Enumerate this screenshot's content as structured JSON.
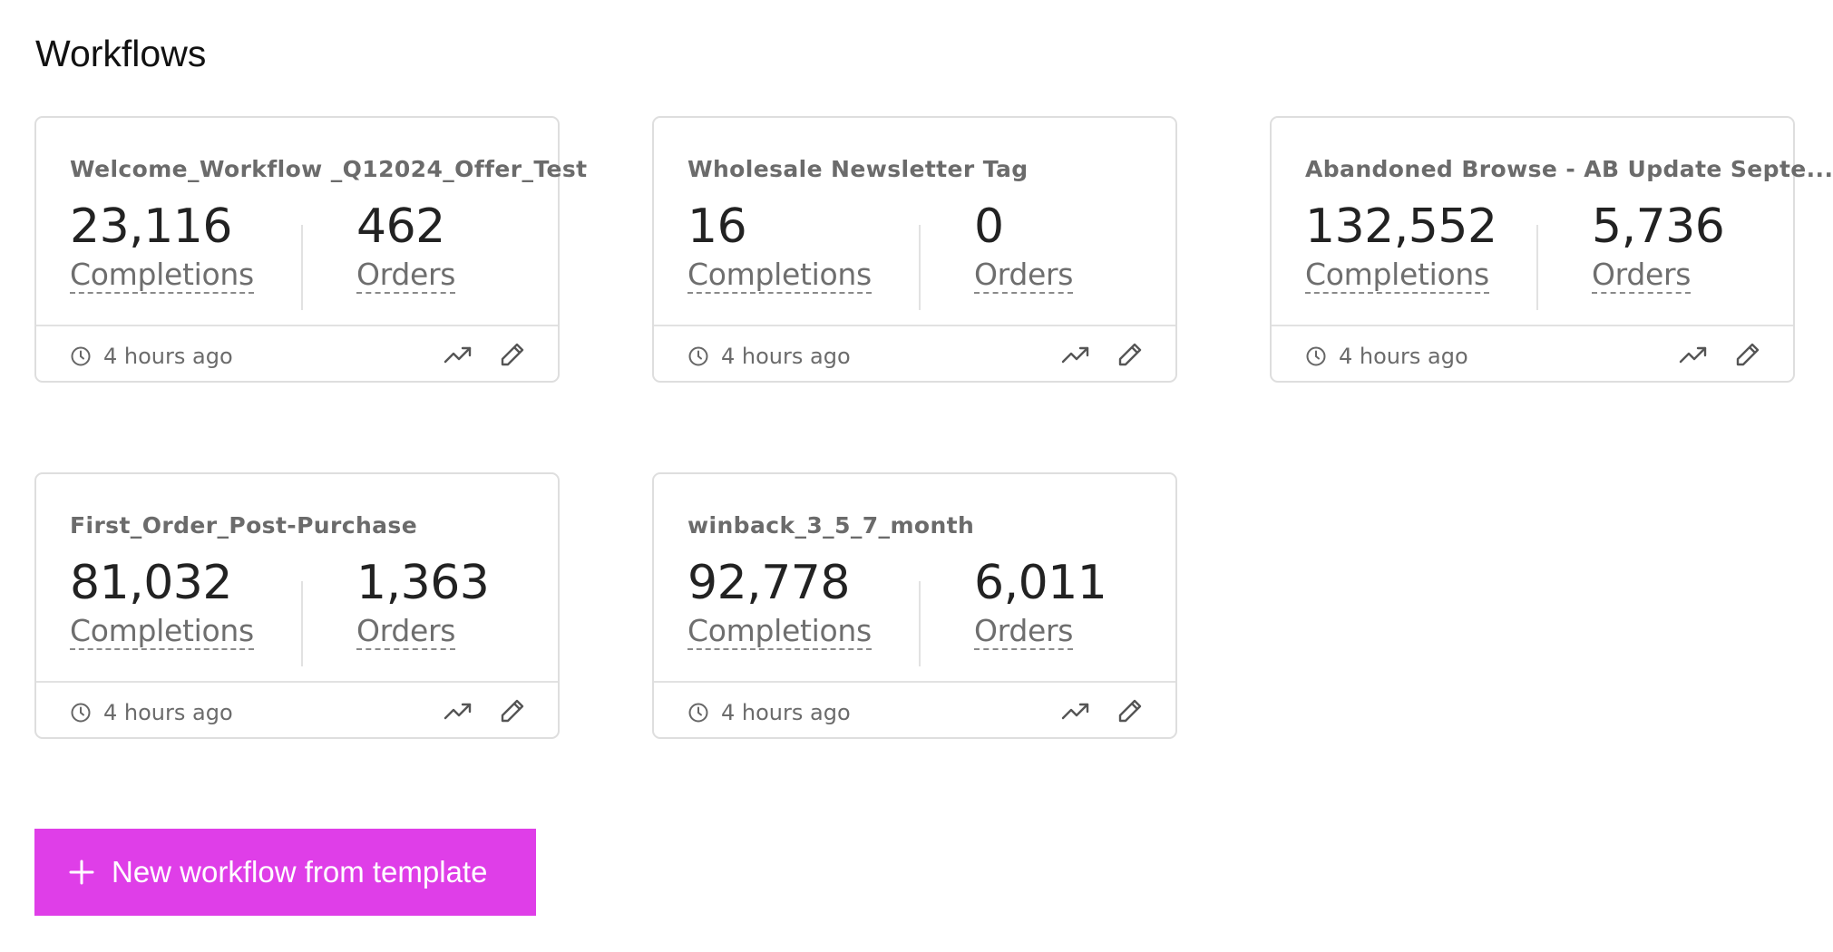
{
  "page": {
    "title": "Workflows"
  },
  "labels": {
    "completions": "Completions",
    "orders": "Orders"
  },
  "workflows": [
    {
      "name": "Welcome_Workflow _Q12024_Offer_Test",
      "completions": "23,116",
      "orders": "462",
      "updated": "4 hours ago"
    },
    {
      "name": "Wholesale Newsletter Tag",
      "completions": "16",
      "orders": "0",
      "updated": "4 hours ago"
    },
    {
      "name": "Abandoned Browse - AB Update Septe...",
      "completions": "132,552",
      "orders": "5,736",
      "updated": "4 hours ago"
    },
    {
      "name": "First_Order_Post-Purchase",
      "completions": "81,032",
      "orders": "1,363",
      "updated": "4 hours ago"
    },
    {
      "name": "winback_3_5_7_month",
      "completions": "92,778",
      "orders": "6,011",
      "updated": "4 hours ago"
    }
  ],
  "actions": {
    "new_workflow_label": "New workflow from template"
  },
  "icons": {
    "time": "clock-icon",
    "analytics": "trend-up-icon",
    "edit": "pencil-icon",
    "add": "plus-icon"
  },
  "colors": {
    "accent": "#df3ee8",
    "card_border": "#dedede",
    "muted_text": "#6b6b6b"
  }
}
